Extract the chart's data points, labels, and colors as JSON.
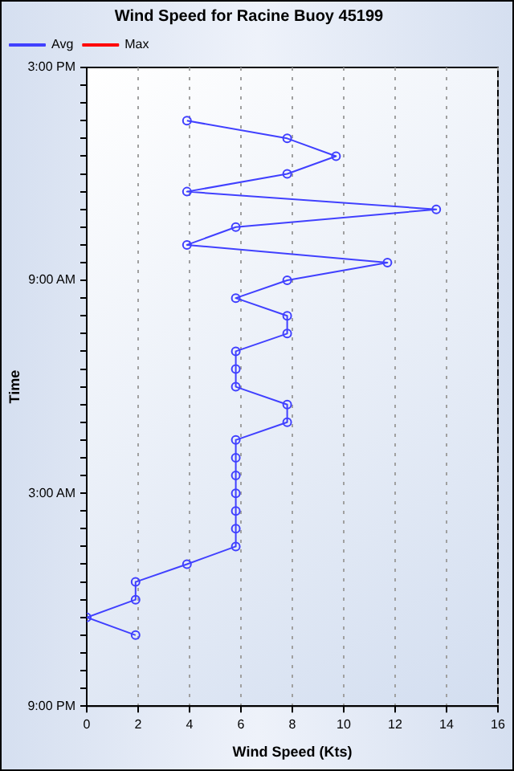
{
  "chart_data": {
    "type": "line",
    "title": "Wind Speed for Racine Buoy 45199",
    "xlabel": "Wind Speed (Kts)",
    "ylabel": "Time",
    "orientation": "horizontal",
    "categories": [
      "3:00 PM",
      null,
      null,
      null,
      null,
      null,
      null,
      null,
      null,
      null,
      null,
      null,
      "9:00 AM",
      null,
      null,
      null,
      null,
      null,
      null,
      null,
      null,
      null,
      null,
      null,
      "3:00 AM",
      null,
      null,
      null,
      null,
      null,
      null,
      null,
      null,
      null,
      null,
      null,
      "9:00 PM"
    ],
    "series": [
      {
        "name": "Avg",
        "color": "#4040ff",
        "values": [
          null,
          null,
          null,
          3.9,
          7.8,
          9.7,
          7.8,
          3.9,
          13.6,
          5.8,
          3.9,
          11.7,
          7.8,
          5.8,
          7.8,
          7.8,
          5.8,
          5.8,
          5.8,
          7.8,
          7.8,
          5.8,
          5.8,
          5.8,
          5.8,
          5.8,
          5.8,
          5.8,
          3.9,
          1.9,
          1.9,
          0,
          1.9,
          null,
          null,
          null,
          null
        ]
      },
      {
        "name": "Max",
        "color": "#ff0000",
        "values": [
          null,
          null,
          null,
          null,
          null,
          null,
          null,
          null,
          null,
          null,
          null,
          null,
          null,
          null,
          null,
          null,
          null,
          null,
          null,
          null,
          null,
          null,
          null,
          null,
          null,
          null,
          null,
          null,
          null,
          null,
          null,
          null,
          null,
          null,
          null,
          null,
          null
        ]
      }
    ],
    "xlim": [
      0,
      16
    ],
    "xticks": [
      0,
      2,
      4,
      6,
      8,
      10,
      12,
      14,
      16
    ],
    "grid": "x",
    "legend": "top left",
    "marker": "circle",
    "line_style": "solid"
  }
}
